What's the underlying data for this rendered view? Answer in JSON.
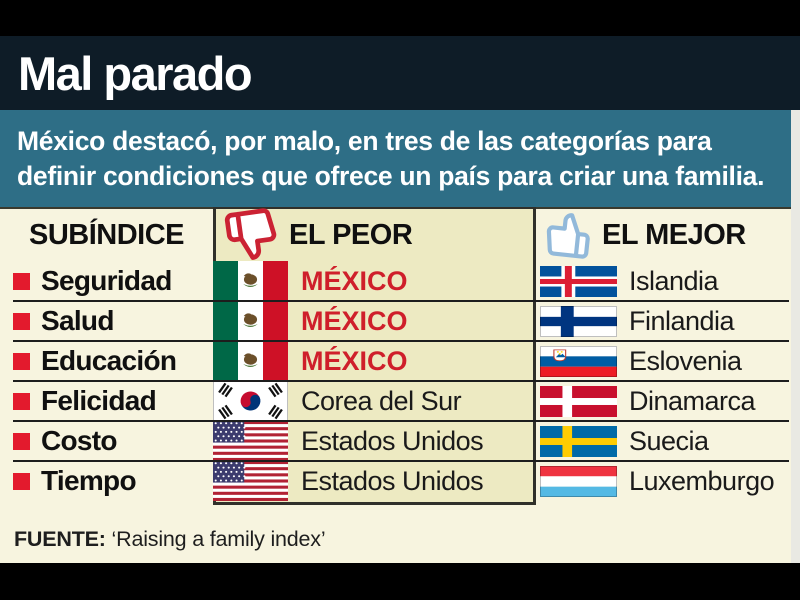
{
  "title_bar": {
    "title": "Mal parado"
  },
  "subtitle": {
    "lines": [
      "México destacó, por malo, en tres de las categorías para",
      "definir condiciones que ofrece un país para criar una familia."
    ]
  },
  "table": {
    "headers": {
      "subindex": "SUBÍNDICE",
      "worst": "EL PEOR",
      "best": "EL MEJOR"
    },
    "header_icons": {
      "worst": "thumbs-down-icon",
      "best": "thumbs-up-icon"
    },
    "rows": [
      {
        "label": "Seguridad",
        "worst_country": "MÉXICO",
        "worst_flag": "mexico-flag",
        "worst_highlight": true,
        "best_country": "Islandia",
        "best_flag": "iceland-flag"
      },
      {
        "label": "Salud",
        "worst_country": "MÉXICO",
        "worst_flag": "mexico-flag",
        "worst_highlight": true,
        "best_country": "Finlandia",
        "best_flag": "finland-flag"
      },
      {
        "label": "Educación",
        "worst_country": "MÉXICO",
        "worst_flag": "mexico-flag",
        "worst_highlight": true,
        "best_country": "Eslovenia",
        "best_flag": "slovenia-flag"
      },
      {
        "label": "Felicidad",
        "worst_country": "Corea del Sur",
        "worst_flag": "south-korea-flag",
        "worst_highlight": false,
        "best_country": "Dinamarca",
        "best_flag": "denmark-flag"
      },
      {
        "label": "Costo",
        "worst_country": "Estados Unidos",
        "worst_flag": "usa-flag",
        "worst_highlight": false,
        "best_country": "Suecia",
        "best_flag": "sweden-flag"
      },
      {
        "label": "Tiempo",
        "worst_country": "Estados Unidos",
        "worst_flag": "usa-flag",
        "worst_highlight": false,
        "best_country": "Luxemburgo",
        "best_flag": "luxembourg-flag"
      }
    ]
  },
  "footer": {
    "source_label": "FUENTE:",
    "source_text": "‘Raising a family index’"
  },
  "colors": {
    "top_bottom_bars": "#000000",
    "title_bg": "#0e1c27",
    "subtitle_bg": "#2e6e86",
    "table_bg": "#f7f4df",
    "worst_column_bg": "#edeac2",
    "highlight_red": "#cf1f2b",
    "bullet_red": "#e31a2d",
    "thumb_down_red": "#cb2233",
    "thumb_up_blue": "#92b9da",
    "separator": "#1d1d1d"
  },
  "chart_data": {
    "type": "table",
    "title": "Mal parado",
    "subtitle": "México destacó, por malo, en tres de las categorías para definir condiciones que ofrece un país para criar una familia.",
    "columns": [
      "SUBÍNDICE",
      "EL PEOR",
      "EL MEJOR"
    ],
    "rows": [
      [
        "Seguridad",
        "México",
        "Islandia"
      ],
      [
        "Salud",
        "México",
        "Finlandia"
      ],
      [
        "Educación",
        "México",
        "Eslovenia"
      ],
      [
        "Felicidad",
        "Corea del Sur",
        "Dinamarca"
      ],
      [
        "Costo",
        "Estados Unidos",
        "Suecia"
      ],
      [
        "Tiempo",
        "Estados Unidos",
        "Luxemburgo"
      ]
    ],
    "source": "‘Raising a family index’"
  }
}
